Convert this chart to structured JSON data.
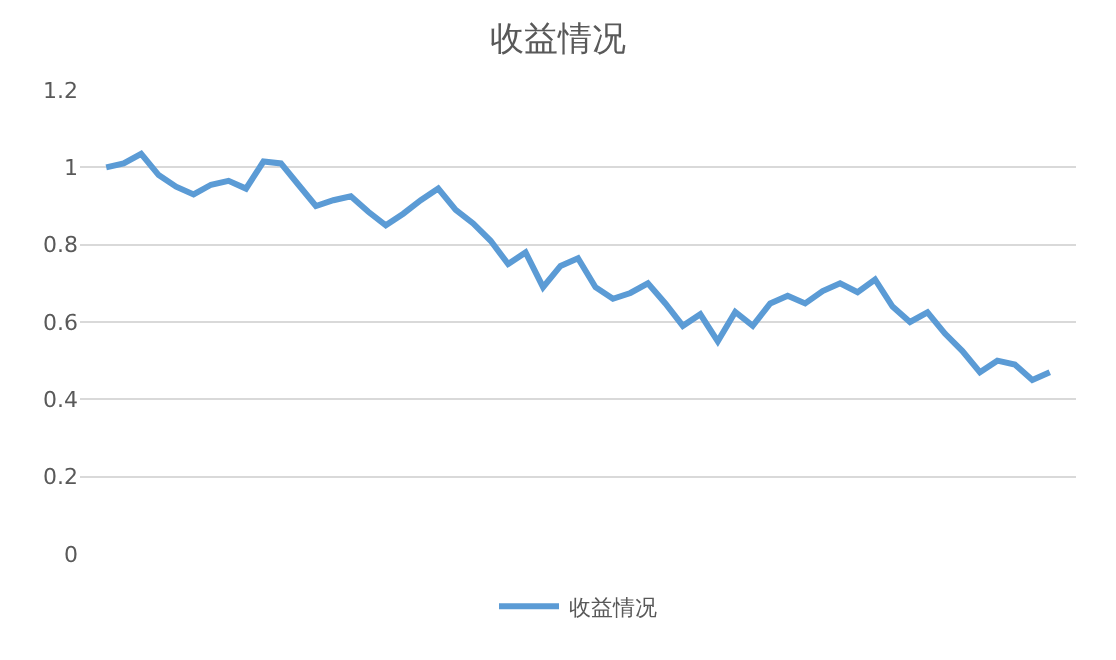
{
  "chart_data": {
    "type": "line",
    "title": "收益情况",
    "categories": [
      null,
      null,
      null,
      null,
      null,
      null,
      null,
      null,
      null,
      null,
      null,
      null,
      null,
      null,
      null,
      null,
      null,
      null,
      null,
      null,
      null,
      null,
      null,
      null,
      null,
      null,
      null,
      null,
      null,
      null,
      null,
      null,
      null,
      null,
      null,
      null,
      null,
      null,
      null,
      null,
      null,
      null,
      null,
      null,
      null,
      null,
      null,
      null,
      null,
      null,
      null,
      null,
      null,
      null,
      null
    ],
    "series": [
      {
        "name": "收益情况",
        "color": "#5b9bd5",
        "values": [
          1.0,
          1.01,
          1.035,
          0.98,
          0.95,
          0.93,
          0.955,
          0.965,
          0.945,
          1.015,
          1.01,
          0.955,
          0.9,
          0.915,
          0.925,
          0.885,
          0.85,
          0.88,
          0.915,
          0.945,
          0.89,
          0.855,
          0.81,
          0.75,
          0.78,
          0.69,
          0.745,
          0.765,
          0.69,
          0.66,
          0.675,
          0.7,
          0.648,
          0.59,
          0.62,
          0.55,
          0.626,
          0.59,
          0.648,
          0.668,
          0.648,
          0.68,
          0.7,
          0.677,
          0.71,
          0.64,
          0.6,
          0.625,
          0.57,
          0.525,
          0.47,
          0.5,
          0.49,
          0.45,
          0.47
        ]
      }
    ],
    "ylim": [
      0,
      1.2
    ],
    "yticks": [
      0,
      0.2,
      0.4,
      0.6,
      0.8,
      1,
      1.2
    ],
    "grid": "y",
    "legend": "bottom",
    "marker": "none",
    "line_style": "solid"
  }
}
